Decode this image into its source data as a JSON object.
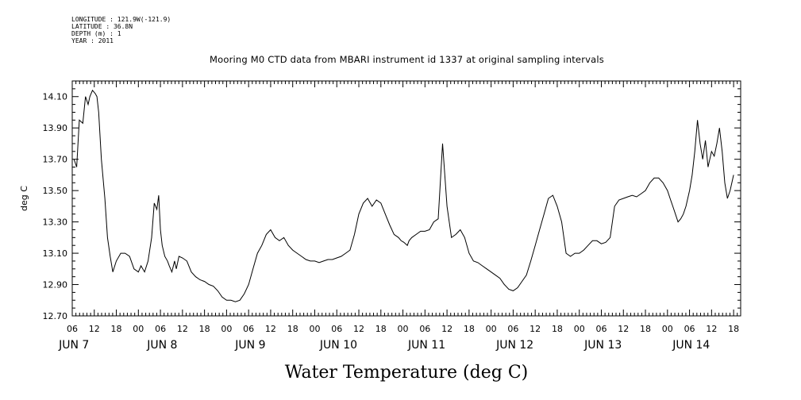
{
  "metadata": {
    "longitude": "LONGITUDE : 121.9W(-121.9)",
    "latitude": "LATITUDE : 36.8N",
    "depth": "DEPTH (m) : 1",
    "year": "YEAR : 2011"
  },
  "chart_data": {
    "type": "line",
    "title": "Mooring M0 CTD data from MBARI instrument id 1337 at original sampling intervals",
    "xlabel": "Water Temperature (deg C)",
    "ylabel": "deg C",
    "xlim": [
      1.0,
      8.58
    ],
    "ylim": [
      12.7,
      14.2
    ],
    "yticks": [
      "12.70",
      "12.90",
      "13.10",
      "13.30",
      "13.50",
      "13.70",
      "13.90",
      "14.10"
    ],
    "hour_ticks": [
      "06",
      "12",
      "18",
      "00",
      "06",
      "12",
      "18",
      "00",
      "06",
      "12",
      "18",
      "00",
      "06",
      "12",
      "18",
      "00",
      "06",
      "12",
      "18",
      "00",
      "06",
      "12",
      "18",
      "00",
      "06",
      "12",
      "18",
      "00",
      "06",
      "12",
      "18",
      "00",
      "06",
      "12",
      "18",
      "00"
    ],
    "day_labels": [
      {
        "label": "JUN  7",
        "day": 7
      },
      {
        "label": "JUN  8",
        "day": 8
      },
      {
        "label": "JUN  9",
        "day": 9
      },
      {
        "label": "JUN 10",
        "day": 10
      },
      {
        "label": "JUN 11",
        "day": 11
      },
      {
        "label": "JUN 12",
        "day": 12
      },
      {
        "label": "JUN 13",
        "day": 13
      },
      {
        "label": "JUN 14",
        "day": 14
      }
    ],
    "x_units": "days since Jun 6 00:00",
    "series": [
      {
        "x": [
          1.02,
          1.05,
          1.08,
          1.12,
          1.15,
          1.18,
          1.2,
          1.23,
          1.26,
          1.28,
          1.3,
          1.33,
          1.37,
          1.4,
          1.43,
          1.46,
          1.5,
          1.55,
          1.6,
          1.65,
          1.7,
          1.75,
          1.78,
          1.82,
          1.86,
          1.9,
          1.93,
          1.96,
          1.98,
          2.0,
          2.02,
          2.05,
          2.08,
          2.1,
          2.13,
          2.16,
          2.18,
          2.21,
          2.25,
          2.3,
          2.35,
          2.4,
          2.45,
          2.5,
          2.55,
          2.6,
          2.65,
          2.7,
          2.75,
          2.8,
          2.85,
          2.9,
          2.95,
          3.0,
          3.05,
          3.1,
          3.15,
          3.2,
          3.25,
          3.3,
          3.35,
          3.4,
          3.45,
          3.5,
          3.55,
          3.6,
          3.65,
          3.7,
          3.75,
          3.8,
          3.85,
          3.9,
          3.95,
          4.0,
          4.05,
          4.1,
          4.15,
          4.2,
          4.25,
          4.3,
          4.35,
          4.4,
          4.45,
          4.5,
          4.55,
          4.6,
          4.65,
          4.7,
          4.73,
          4.76,
          4.78,
          4.8,
          4.82,
          4.85,
          4.9,
          4.95,
          5.0,
          5.05,
          5.1,
          5.15,
          5.2,
          5.25,
          5.3,
          5.35,
          5.4,
          5.45,
          5.5,
          5.55,
          5.6,
          5.65,
          5.7,
          5.75,
          5.8,
          5.85,
          5.9,
          5.95,
          6.0,
          6.05,
          6.1,
          6.15,
          6.2,
          6.25,
          6.3,
          6.35,
          6.4,
          6.45,
          6.5,
          6.55,
          6.6,
          6.65,
          6.7,
          6.75,
          6.8,
          6.85,
          6.9,
          6.95,
          7.0,
          7.05,
          7.1,
          7.15,
          7.2,
          7.25,
          7.3,
          7.35,
          7.4,
          7.45,
          7.5,
          7.55,
          7.6,
          7.65,
          7.7,
          7.75,
          7.78,
          7.81,
          7.84,
          7.87,
          7.9,
          7.93,
          7.96,
          8.0,
          8.03,
          8.06,
          8.09,
          8.12,
          8.15,
          8.18,
          8.21,
          8.25,
          8.28,
          8.31,
          8.34,
          8.37,
          8.4,
          8.43,
          8.46,
          8.5
        ],
        "y": [
          13.7,
          13.65,
          13.95,
          13.93,
          14.1,
          14.05,
          14.1,
          14.14,
          14.12,
          14.1,
          14.0,
          13.7,
          13.45,
          13.2,
          13.08,
          12.98,
          13.05,
          13.1,
          13.1,
          13.08,
          13.0,
          12.98,
          13.02,
          12.98,
          13.05,
          13.2,
          13.42,
          13.38,
          13.47,
          13.25,
          13.15,
          13.08,
          13.05,
          13.02,
          12.98,
          13.05,
          13.0,
          13.08,
          13.07,
          13.05,
          12.98,
          12.95,
          12.93,
          12.92,
          12.9,
          12.89,
          12.86,
          12.82,
          12.8,
          12.8,
          12.79,
          12.8,
          12.84,
          12.9,
          13.0,
          13.1,
          13.15,
          13.22,
          13.25,
          13.2,
          13.18,
          13.2,
          13.15,
          13.12,
          13.1,
          13.08,
          13.06,
          13.05,
          13.05,
          13.04,
          13.05,
          13.06,
          13.06,
          13.07,
          13.08,
          13.1,
          13.12,
          13.22,
          13.35,
          13.42,
          13.45,
          13.4,
          13.44,
          13.42,
          13.35,
          13.28,
          13.22,
          13.2,
          13.18,
          13.17,
          13.16,
          13.15,
          13.18,
          13.2,
          13.22,
          13.24,
          13.24,
          13.25,
          13.3,
          13.32,
          13.8,
          13.4,
          13.2,
          13.22,
          13.25,
          13.2,
          13.1,
          13.05,
          13.04,
          13.02,
          13.0,
          12.98,
          12.96,
          12.94,
          12.9,
          12.87,
          12.86,
          12.88,
          12.92,
          12.96,
          13.05,
          13.15,
          13.25,
          13.35,
          13.45,
          13.47,
          13.4,
          13.3,
          13.1,
          13.08,
          13.1,
          13.1,
          13.12,
          13.15,
          13.18,
          13.18,
          13.16,
          13.17,
          13.2,
          13.4,
          13.44,
          13.45,
          13.46,
          13.47,
          13.46,
          13.48,
          13.5,
          13.55,
          13.58,
          13.58,
          13.55,
          13.5,
          13.45,
          13.4,
          13.35,
          13.3,
          13.32,
          13.35,
          13.4,
          13.5,
          13.6,
          13.75,
          13.95,
          13.8,
          13.7,
          13.82,
          13.65,
          13.75,
          13.72,
          13.8,
          13.9,
          13.75,
          13.55,
          13.45,
          13.5,
          13.6
        ]
      }
    ]
  }
}
